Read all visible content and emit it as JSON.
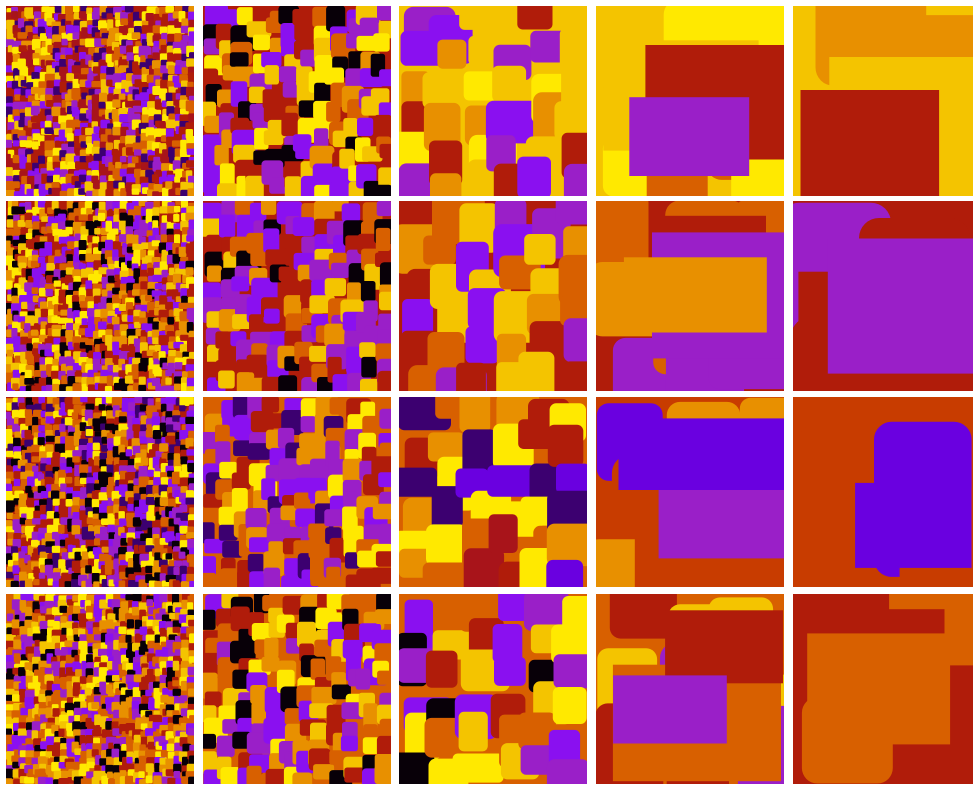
{
  "palette": {
    "gold": "#f4c400",
    "yellow": "#ffe900",
    "orange": "#e89000",
    "dark_orange": "#d86000",
    "red_orange": "#c83c00",
    "red": "#b01c0a",
    "crimson": "#a8141a",
    "magenta": "#9a1fc8",
    "violet": "#8a10f0",
    "indigo": "#6a00e0",
    "deep_purple": "#3c0070",
    "black": "#080008"
  },
  "grid": {
    "rows": 4,
    "columns": 5,
    "background": "#ffffff"
  },
  "panels": [
    {
      "row": 1,
      "col": 1,
      "scale": "finest",
      "palette_keys": [
        "red",
        "crimson",
        "orange",
        "gold",
        "magenta",
        "violet",
        "dark_orange",
        "yellow",
        "deep_purple"
      ]
    },
    {
      "row": 1,
      "col": 2,
      "scale": "fine",
      "palette_keys": [
        "red",
        "gold",
        "orange",
        "magenta",
        "violet",
        "dark_orange",
        "yellow",
        "black"
      ]
    },
    {
      "row": 1,
      "col": 3,
      "scale": "medium",
      "palette_keys": [
        "gold",
        "red",
        "magenta",
        "orange",
        "yellow",
        "violet"
      ]
    },
    {
      "row": 1,
      "col": 4,
      "scale": "coarse",
      "palette_keys": [
        "gold",
        "red",
        "magenta",
        "yellow",
        "dark_orange"
      ]
    },
    {
      "row": 1,
      "col": 5,
      "scale": "coarsest",
      "palette_keys": [
        "gold",
        "red",
        "magenta",
        "yellow",
        "orange"
      ]
    },
    {
      "row": 2,
      "col": 1,
      "scale": "finest",
      "palette_keys": [
        "red",
        "magenta",
        "violet",
        "orange",
        "gold",
        "yellow",
        "dark_orange",
        "black"
      ]
    },
    {
      "row": 2,
      "col": 2,
      "scale": "fine",
      "palette_keys": [
        "red",
        "magenta",
        "violet",
        "orange",
        "gold",
        "dark_orange",
        "black"
      ]
    },
    {
      "row": 2,
      "col": 3,
      "scale": "medium",
      "palette_keys": [
        "red",
        "magenta",
        "violet",
        "orange",
        "gold",
        "dark_orange"
      ]
    },
    {
      "row": 2,
      "col": 4,
      "scale": "coarse",
      "palette_keys": [
        "red",
        "magenta",
        "orange",
        "dark_orange"
      ]
    },
    {
      "row": 2,
      "col": 5,
      "scale": "coarsest",
      "palette_keys": [
        "red",
        "magenta"
      ]
    },
    {
      "row": 3,
      "col": 1,
      "scale": "finest",
      "palette_keys": [
        "red",
        "dark_orange",
        "orange",
        "yellow",
        "magenta",
        "violet",
        "deep_purple",
        "black"
      ]
    },
    {
      "row": 3,
      "col": 2,
      "scale": "fine",
      "palette_keys": [
        "dark_orange",
        "red",
        "orange",
        "yellow",
        "magenta",
        "violet",
        "deep_purple"
      ]
    },
    {
      "row": 3,
      "col": 3,
      "scale": "medium",
      "palette_keys": [
        "dark_orange",
        "red",
        "orange",
        "yellow",
        "indigo",
        "deep_purple",
        "crimson"
      ]
    },
    {
      "row": 3,
      "col": 4,
      "scale": "coarse",
      "palette_keys": [
        "red_orange",
        "magenta",
        "indigo",
        "orange"
      ]
    },
    {
      "row": 3,
      "col": 5,
      "scale": "coarsest",
      "palette_keys": [
        "red_orange",
        "indigo"
      ]
    },
    {
      "row": 4,
      "col": 1,
      "scale": "finest",
      "palette_keys": [
        "dark_orange",
        "red",
        "orange",
        "gold",
        "yellow",
        "magenta",
        "violet",
        "black"
      ]
    },
    {
      "row": 4,
      "col": 2,
      "scale": "fine",
      "palette_keys": [
        "dark_orange",
        "red",
        "orange",
        "gold",
        "yellow",
        "magenta",
        "violet",
        "black"
      ]
    },
    {
      "row": 4,
      "col": 3,
      "scale": "medium",
      "palette_keys": [
        "dark_orange",
        "red",
        "magenta",
        "violet",
        "gold",
        "yellow",
        "black"
      ]
    },
    {
      "row": 4,
      "col": 4,
      "scale": "coarse",
      "palette_keys": [
        "dark_orange",
        "red",
        "magenta",
        "gold"
      ]
    },
    {
      "row": 4,
      "col": 5,
      "scale": "coarsest",
      "palette_keys": [
        "red",
        "dark_orange"
      ]
    }
  ]
}
